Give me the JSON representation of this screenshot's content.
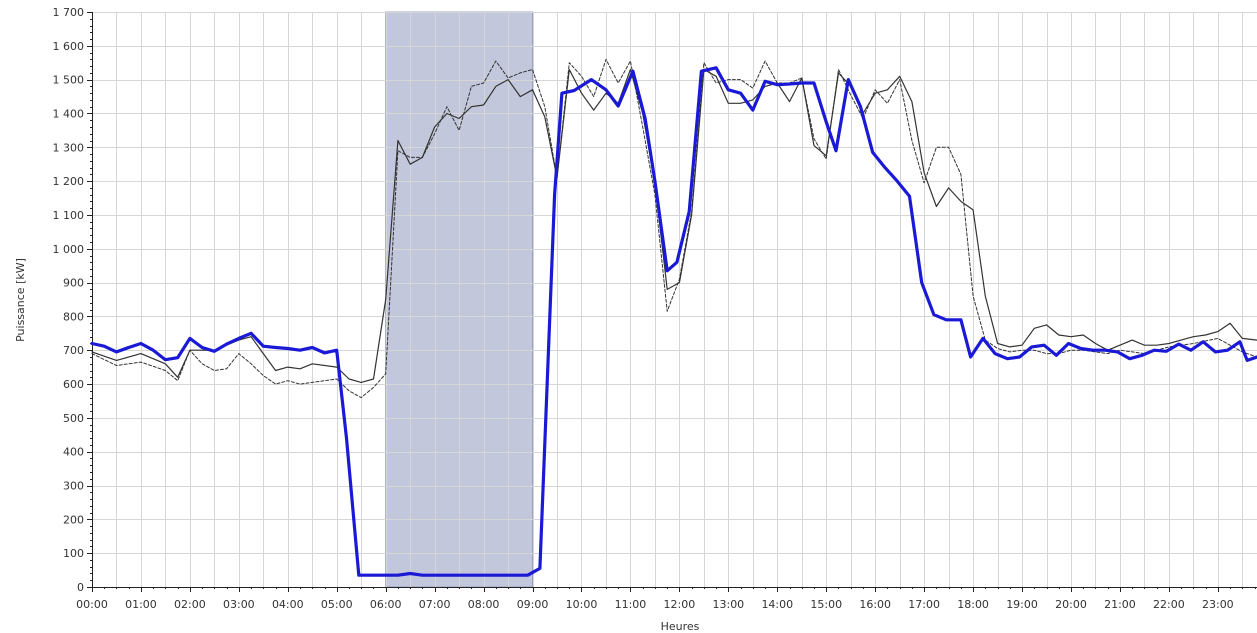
{
  "chart_data": {
    "type": "line",
    "xlabel": "Heures",
    "ylabel": "Puissance [kW]",
    "xlim": [
      0,
      23.8
    ],
    "ylim": [
      0,
      1700
    ],
    "x_ticks": [
      {
        "v": 0,
        "label": "00:00"
      },
      {
        "v": 1,
        "label": "01:00"
      },
      {
        "v": 2,
        "label": "02:00"
      },
      {
        "v": 3,
        "label": "03:00"
      },
      {
        "v": 4,
        "label": "04:00"
      },
      {
        "v": 5,
        "label": "05:00"
      },
      {
        "v": 6,
        "label": "06:00"
      },
      {
        "v": 7,
        "label": "07:00"
      },
      {
        "v": 8,
        "label": "08:00"
      },
      {
        "v": 9,
        "label": "09:00"
      },
      {
        "v": 10,
        "label": "10:00"
      },
      {
        "v": 11,
        "label": "11:00"
      },
      {
        "v": 12,
        "label": "12:00"
      },
      {
        "v": 13,
        "label": "13:00"
      },
      {
        "v": 14,
        "label": "14:00"
      },
      {
        "v": 15,
        "label": "15:00"
      },
      {
        "v": 16,
        "label": "16:00"
      },
      {
        "v": 17,
        "label": "17:00"
      },
      {
        "v": 18,
        "label": "18:00"
      },
      {
        "v": 19,
        "label": "19:00"
      },
      {
        "v": 20,
        "label": "20:00"
      },
      {
        "v": 21,
        "label": "21:00"
      },
      {
        "v": 22,
        "label": "22:00"
      },
      {
        "v": 23,
        "label": "23:00"
      }
    ],
    "y_ticks": [
      {
        "v": 0,
        "label": "0"
      },
      {
        "v": 100,
        "label": "100"
      },
      {
        "v": 200,
        "label": "200"
      },
      {
        "v": 300,
        "label": "300"
      },
      {
        "v": 400,
        "label": "400"
      },
      {
        "v": 500,
        "label": "500"
      },
      {
        "v": 600,
        "label": "600"
      },
      {
        "v": 700,
        "label": "700"
      },
      {
        "v": 800,
        "label": "800"
      },
      {
        "v": 900,
        "label": "900"
      },
      {
        "v": 1000,
        "label": "1 000"
      },
      {
        "v": 1100,
        "label": "1 100"
      },
      {
        "v": 1200,
        "label": "1 200"
      },
      {
        "v": 1300,
        "label": "1 300"
      },
      {
        "v": 1400,
        "label": "1 400"
      },
      {
        "v": 1500,
        "label": "1 500"
      },
      {
        "v": 1600,
        "label": "1 600"
      },
      {
        "v": 1700,
        "label": "1 700"
      }
    ],
    "grid": true,
    "highlight_band": {
      "x_start": 6.0,
      "x_end": 9.0,
      "color": "#b9bdd6"
    },
    "series": [
      {
        "color": "#1a1ad6",
        "style": "thick",
        "points": [
          [
            0,
            720
          ],
          [
            0.25,
            712
          ],
          [
            0.5,
            695
          ],
          [
            0.75,
            708
          ],
          [
            1,
            720
          ],
          [
            1.25,
            700
          ],
          [
            1.5,
            672
          ],
          [
            1.75,
            678
          ],
          [
            2,
            735
          ],
          [
            2.25,
            708
          ],
          [
            2.5,
            697
          ],
          [
            2.75,
            718
          ],
          [
            3,
            735
          ],
          [
            3.25,
            750
          ],
          [
            3.5,
            712
          ],
          [
            3.75,
            708
          ],
          [
            4,
            705
          ],
          [
            4.25,
            700
          ],
          [
            4.5,
            708
          ],
          [
            4.75,
            692
          ],
          [
            5,
            700
          ],
          [
            5.2,
            440
          ],
          [
            5.45,
            35
          ],
          [
            6,
            35
          ],
          [
            6.25,
            35
          ],
          [
            6.5,
            40
          ],
          [
            6.75,
            35
          ],
          [
            7,
            35
          ],
          [
            7.5,
            35
          ],
          [
            8,
            35
          ],
          [
            8.5,
            35
          ],
          [
            8.9,
            35
          ],
          [
            9.15,
            55
          ],
          [
            9.45,
            1160
          ],
          [
            9.6,
            1460
          ],
          [
            9.85,
            1468
          ],
          [
            10.2,
            1500
          ],
          [
            10.5,
            1470
          ],
          [
            10.75,
            1422
          ],
          [
            11.05,
            1525
          ],
          [
            11.3,
            1385
          ],
          [
            11.5,
            1200
          ],
          [
            11.75,
            935
          ],
          [
            11.95,
            960
          ],
          [
            12.2,
            1110
          ],
          [
            12.45,
            1525
          ],
          [
            12.75,
            1535
          ],
          [
            13,
            1470
          ],
          [
            13.25,
            1460
          ],
          [
            13.5,
            1410
          ],
          [
            13.75,
            1495
          ],
          [
            14,
            1485
          ],
          [
            14.25,
            1487
          ],
          [
            14.5,
            1490
          ],
          [
            14.75,
            1490
          ],
          [
            15,
            1375
          ],
          [
            15.2,
            1290
          ],
          [
            15.45,
            1500
          ],
          [
            15.7,
            1420
          ],
          [
            15.95,
            1285
          ],
          [
            16.2,
            1240
          ],
          [
            16.45,
            1200
          ],
          [
            16.7,
            1155
          ],
          [
            16.95,
            900
          ],
          [
            17.2,
            805
          ],
          [
            17.45,
            790
          ],
          [
            17.75,
            790
          ],
          [
            17.95,
            680
          ],
          [
            18.2,
            735
          ],
          [
            18.45,
            690
          ],
          [
            18.7,
            675
          ],
          [
            18.95,
            680
          ],
          [
            19.2,
            710
          ],
          [
            19.45,
            715
          ],
          [
            19.7,
            685
          ],
          [
            19.95,
            720
          ],
          [
            20.2,
            705
          ],
          [
            20.45,
            700
          ],
          [
            20.7,
            700
          ],
          [
            20.95,
            695
          ],
          [
            21.2,
            675
          ],
          [
            21.45,
            685
          ],
          [
            21.7,
            700
          ],
          [
            21.95,
            697
          ],
          [
            22.2,
            718
          ],
          [
            22.45,
            700
          ],
          [
            22.7,
            725
          ],
          [
            22.95,
            695
          ],
          [
            23.2,
            700
          ],
          [
            23.45,
            725
          ],
          [
            23.6,
            670
          ],
          [
            23.8,
            680
          ]
        ]
      },
      {
        "color": "#333333",
        "style": "thin",
        "points": [
          [
            0,
            695
          ],
          [
            0.5,
            670
          ],
          [
            1,
            690
          ],
          [
            1.5,
            660
          ],
          [
            1.75,
            620
          ],
          [
            2,
            700
          ],
          [
            2.5,
            700
          ],
          [
            3,
            730
          ],
          [
            3.25,
            740
          ],
          [
            3.5,
            690
          ],
          [
            3.75,
            640
          ],
          [
            4,
            650
          ],
          [
            4.25,
            645
          ],
          [
            4.5,
            660
          ],
          [
            5,
            650
          ],
          [
            5.25,
            615
          ],
          [
            5.5,
            605
          ],
          [
            5.75,
            615
          ],
          [
            6,
            850
          ],
          [
            6.25,
            1320
          ],
          [
            6.5,
            1250
          ],
          [
            6.75,
            1270
          ],
          [
            7,
            1360
          ],
          [
            7.25,
            1400
          ],
          [
            7.5,
            1385
          ],
          [
            7.75,
            1420
          ],
          [
            8,
            1425
          ],
          [
            8.25,
            1480
          ],
          [
            8.5,
            1500
          ],
          [
            8.75,
            1450
          ],
          [
            9,
            1470
          ],
          [
            9.25,
            1390
          ],
          [
            9.5,
            1210
          ],
          [
            9.75,
            1530
          ],
          [
            10,
            1460
          ],
          [
            10.25,
            1410
          ],
          [
            10.5,
            1460
          ],
          [
            10.75,
            1430
          ],
          [
            11,
            1530
          ],
          [
            11.25,
            1400
          ],
          [
            11.5,
            1195
          ],
          [
            11.75,
            880
          ],
          [
            12,
            900
          ],
          [
            12.25,
            1100
          ],
          [
            12.5,
            1530
          ],
          [
            12.75,
            1510
          ],
          [
            13,
            1430
          ],
          [
            13.25,
            1430
          ],
          [
            13.5,
            1440
          ],
          [
            13.75,
            1480
          ],
          [
            14,
            1490
          ],
          [
            14.25,
            1435
          ],
          [
            14.5,
            1505
          ],
          [
            14.75,
            1305
          ],
          [
            15,
            1275
          ],
          [
            15.25,
            1520
          ],
          [
            15.5,
            1480
          ],
          [
            15.75,
            1400
          ],
          [
            16,
            1460
          ],
          [
            16.25,
            1470
          ],
          [
            16.5,
            1510
          ],
          [
            16.75,
            1435
          ],
          [
            17,
            1225
          ],
          [
            17.25,
            1125
          ],
          [
            17.5,
            1180
          ],
          [
            17.75,
            1140
          ],
          [
            18,
            1115
          ],
          [
            18.25,
            860
          ],
          [
            18.5,
            720
          ],
          [
            18.75,
            710
          ],
          [
            19,
            715
          ],
          [
            19.25,
            765
          ],
          [
            19.5,
            775
          ],
          [
            19.75,
            745
          ],
          [
            20,
            740
          ],
          [
            20.25,
            745
          ],
          [
            20.5,
            720
          ],
          [
            20.75,
            700
          ],
          [
            21,
            715
          ],
          [
            21.25,
            730
          ],
          [
            21.5,
            715
          ],
          [
            21.75,
            715
          ],
          [
            22,
            720
          ],
          [
            22.25,
            730
          ],
          [
            22.5,
            740
          ],
          [
            22.75,
            745
          ],
          [
            23,
            755
          ],
          [
            23.25,
            780
          ],
          [
            23.5,
            735
          ],
          [
            23.8,
            730
          ]
        ]
      },
      {
        "color": "#333333",
        "style": "dashed",
        "points": [
          [
            0,
            690
          ],
          [
            0.5,
            655
          ],
          [
            1,
            665
          ],
          [
            1.5,
            640
          ],
          [
            1.75,
            610
          ],
          [
            2,
            700
          ],
          [
            2.25,
            660
          ],
          [
            2.5,
            640
          ],
          [
            2.75,
            645
          ],
          [
            3,
            690
          ],
          [
            3.25,
            660
          ],
          [
            3.5,
            625
          ],
          [
            3.75,
            600
          ],
          [
            4,
            610
          ],
          [
            4.25,
            600
          ],
          [
            4.5,
            605
          ],
          [
            5,
            615
          ],
          [
            5.25,
            580
          ],
          [
            5.5,
            560
          ],
          [
            5.75,
            590
          ],
          [
            6,
            630
          ],
          [
            6.25,
            1290
          ],
          [
            6.5,
            1270
          ],
          [
            6.75,
            1270
          ],
          [
            7,
            1340
          ],
          [
            7.25,
            1420
          ],
          [
            7.5,
            1350
          ],
          [
            7.75,
            1480
          ],
          [
            8,
            1490
          ],
          [
            8.25,
            1555
          ],
          [
            8.5,
            1505
          ],
          [
            8.75,
            1520
          ],
          [
            9,
            1530
          ],
          [
            9.25,
            1420
          ],
          [
            9.5,
            1210
          ],
          [
            9.75,
            1550
          ],
          [
            10,
            1510
          ],
          [
            10.25,
            1450
          ],
          [
            10.5,
            1560
          ],
          [
            10.75,
            1490
          ],
          [
            11,
            1555
          ],
          [
            11.25,
            1360
          ],
          [
            11.5,
            1160
          ],
          [
            11.75,
            815
          ],
          [
            12,
            910
          ],
          [
            12.25,
            1110
          ],
          [
            12.5,
            1550
          ],
          [
            12.75,
            1490
          ],
          [
            13,
            1500
          ],
          [
            13.25,
            1500
          ],
          [
            13.5,
            1475
          ],
          [
            13.75,
            1555
          ],
          [
            14,
            1490
          ],
          [
            14.25,
            1490
          ],
          [
            14.5,
            1505
          ],
          [
            14.75,
            1325
          ],
          [
            15,
            1265
          ],
          [
            15.25,
            1530
          ],
          [
            15.5,
            1455
          ],
          [
            15.75,
            1385
          ],
          [
            16,
            1470
          ],
          [
            16.25,
            1430
          ],
          [
            16.5,
            1500
          ],
          [
            16.75,
            1320
          ],
          [
            17,
            1195
          ],
          [
            17.25,
            1300
          ],
          [
            17.5,
            1300
          ],
          [
            17.75,
            1220
          ],
          [
            18,
            860
          ],
          [
            18.25,
            730
          ],
          [
            18.5,
            705
          ],
          [
            18.75,
            695
          ],
          [
            19,
            700
          ],
          [
            19.25,
            700
          ],
          [
            19.5,
            690
          ],
          [
            19.75,
            690
          ],
          [
            20,
            700
          ],
          [
            20.25,
            700
          ],
          [
            20.5,
            695
          ],
          [
            20.75,
            690
          ],
          [
            21,
            700
          ],
          [
            21.5,
            690
          ],
          [
            22,
            710
          ],
          [
            22.5,
            720
          ],
          [
            23,
            735
          ],
          [
            23.5,
            695
          ],
          [
            23.8,
            680
          ]
        ]
      }
    ]
  }
}
